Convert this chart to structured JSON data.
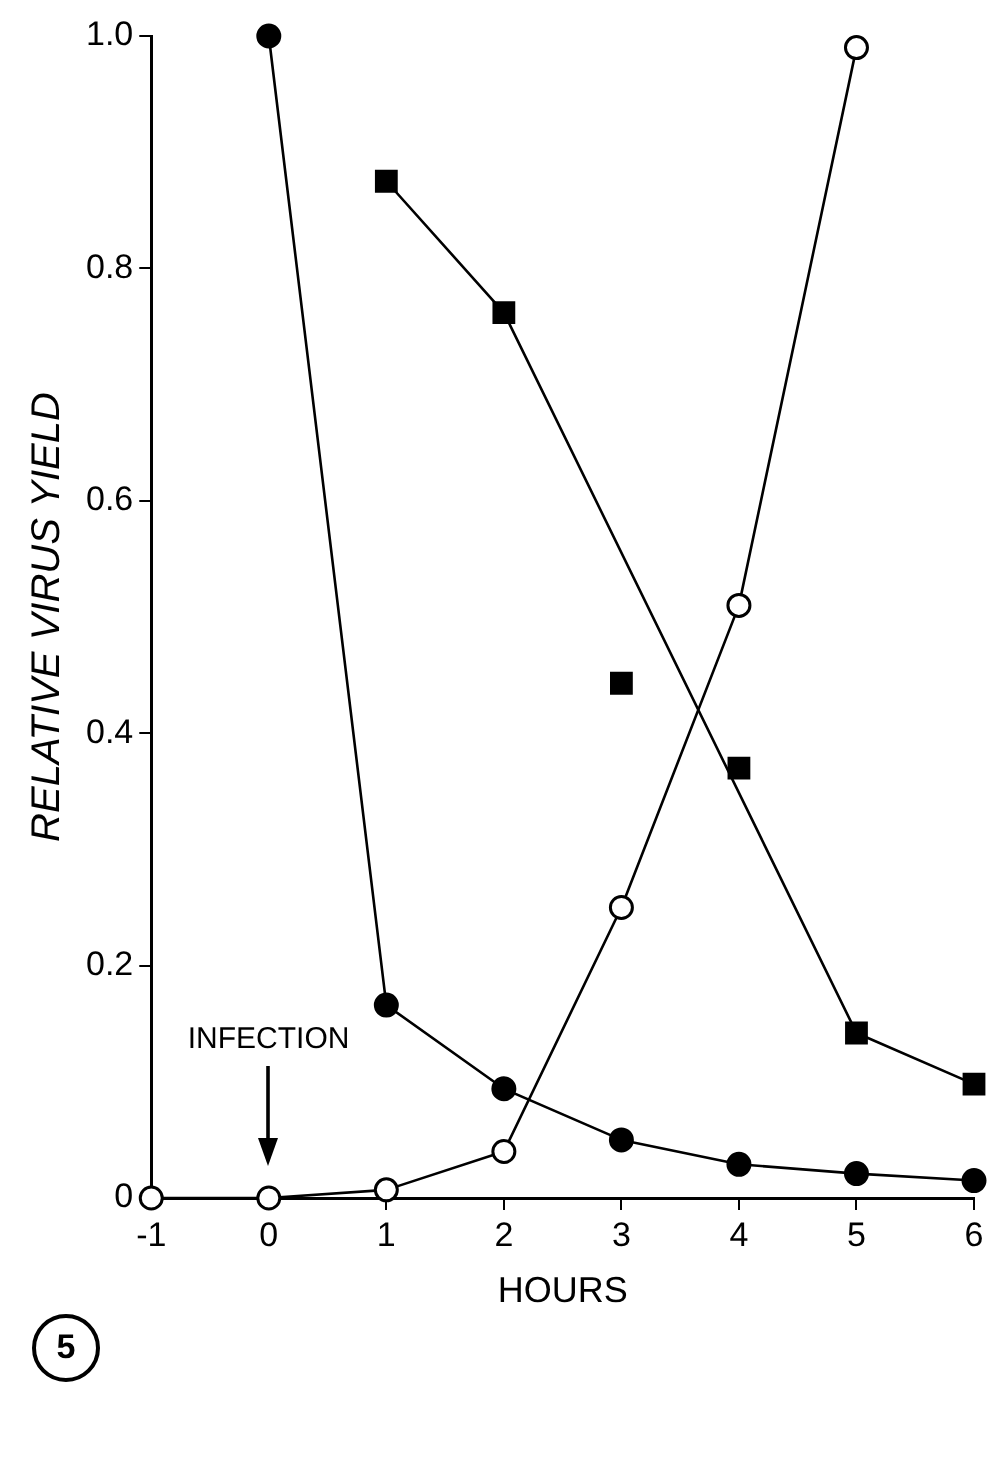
{
  "chart_data": {
    "type": "line",
    "xlabel": "HOURS",
    "ylabel": "RELATIVE VIRUS YIELD",
    "xlim": [
      -1,
      6
    ],
    "xticks": [
      -1,
      0,
      1,
      2,
      3,
      4,
      5,
      6
    ],
    "ylim": [
      0,
      1.0
    ],
    "yticks": [
      {
        "value": 0,
        "label": "0"
      },
      0.2,
      0.4,
      0.6,
      0.8,
      {
        "value": 1.0,
        "label": "1.0"
      }
    ],
    "grid": false,
    "legend": false,
    "line_style": "solid",
    "series": [
      {
        "marker": "circle",
        "color": "#000000",
        "x": [
          0,
          1,
          2,
          3,
          4,
          5,
          6
        ],
        "values": [
          1.0,
          0.166,
          0.094,
          0.05,
          0.029,
          0.021,
          0.015
        ]
      },
      {
        "marker": "circle",
        "color": "#000000",
        "colors": [
          "#ffffff",
          "#ffffff",
          "#ffffff",
          "#ffffff",
          "#ffffff",
          "#ffffff",
          "#ffffff"
        ],
        "x": [
          -1,
          0,
          1,
          2,
          3,
          4,
          5
        ],
        "values": [
          0,
          0,
          0.007,
          0.04,
          0.25,
          0.51,
          0.99
        ]
      },
      {
        "marker": "square",
        "color": "#000000",
        "x": [
          1,
          2,
          5,
          6
        ],
        "values": [
          0.875,
          0.762,
          0.142,
          0.098
        ]
      },
      {
        "type": "scatter",
        "marker": "square",
        "color": "#000000",
        "x": [
          3,
          4
        ],
        "values": [
          0.443,
          0.37
        ]
      }
    ],
    "annotations": [
      "INFECTION",
      "5"
    ]
  }
}
